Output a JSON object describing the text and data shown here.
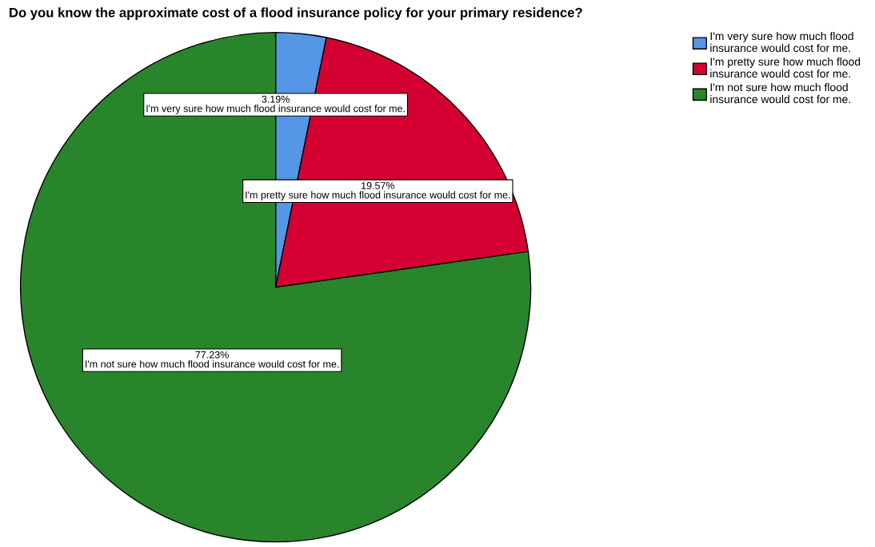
{
  "chart_data": {
    "type": "pie",
    "title": "Do you know the approximate cost of a flood insurance policy for your primary residence?",
    "categories": [
      "I'm very sure how much flood insurance would cost for me.",
      "I'm pretty sure how much flood insurance would cost for me.",
      "I'm not sure how much flood insurance would cost for me."
    ],
    "values": [
      3.19,
      19.57,
      77.23
    ],
    "colors": [
      "#5596e6",
      "#d50032",
      "#29852b"
    ],
    "value_labels": [
      "3.19%",
      "19.57%",
      "77.23%"
    ],
    "legend": "top right"
  }
}
